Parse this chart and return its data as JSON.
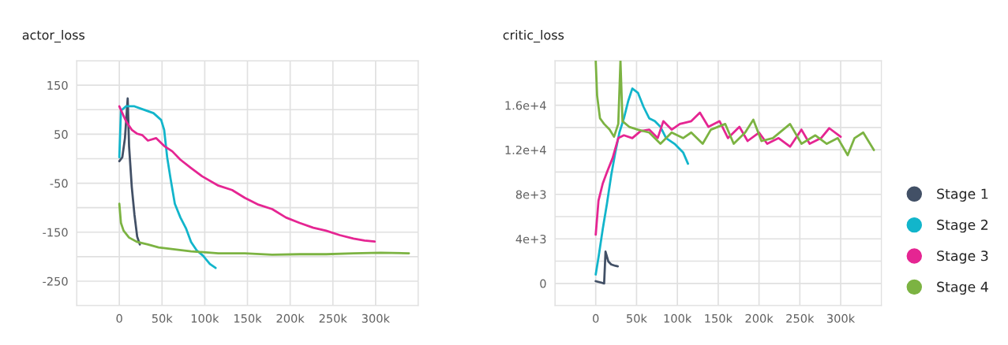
{
  "chart_data": [
    {
      "type": "line",
      "title": "actor_loss",
      "grid": true,
      "legend": "right",
      "xlim": [
        -50000,
        350000
      ],
      "ylim": [
        -300,
        200
      ],
      "xticks": [
        {
          "value": -50000,
          "label": null
        },
        0,
        {
          "value": 50000,
          "label": "50k"
        },
        {
          "value": 100000,
          "label": "100k"
        },
        {
          "value": 150000,
          "label": "150k"
        },
        {
          "value": 200000,
          "label": "200k"
        },
        {
          "value": 250000,
          "label": "250k"
        },
        {
          "value": 300000,
          "label": "300k"
        },
        {
          "value": 350000,
          "label": null
        }
      ],
      "yticks": [
        {
          "value": 200,
          "label": null
        },
        150,
        {
          "value": 100,
          "label": null
        },
        50,
        {
          "value": 0,
          "label": null
        },
        -50,
        {
          "value": -100,
          "label": null
        },
        -150,
        {
          "value": -200,
          "label": null
        },
        -250,
        {
          "value": -300,
          "label": null
        }
      ],
      "series": [
        {
          "name": "Stage 1",
          "color": "#425066",
          "x": [
            0,
            3500,
            6600,
            9800,
            11400,
            14600,
            17700,
            20900,
            24000
          ],
          "values": [
            -5,
            3,
            42,
            123,
            26,
            -58,
            -114,
            -159,
            -175
          ]
        },
        {
          "name": "Stage 2",
          "color": "#12b5cb",
          "x": [
            0,
            1900,
            8000,
            17700,
            27000,
            40000,
            49000,
            52500,
            56000,
            60000,
            65000,
            71500,
            78000,
            84000,
            90500,
            98000,
            106000,
            112700
          ],
          "values": [
            3,
            98,
            107,
            107,
            101,
            93,
            79,
            59,
            3,
            -41,
            -92,
            -120,
            -142,
            -170,
            -187,
            -198,
            -215,
            -223
          ]
        },
        {
          "name": "Stage 3",
          "color": "#e52592",
          "x": [
            0,
            3500,
            8000,
            14600,
            21000,
            27000,
            33500,
            43000,
            52500,
            62000,
            71500,
            84000,
            97000,
            116000,
            132000,
            147000,
            163000,
            179000,
            195000,
            211000,
            227000,
            242000,
            258000,
            274000,
            287000,
            299000
          ],
          "values": [
            107,
            93,
            76,
            59,
            51,
            48,
            37,
            42,
            26,
            15,
            -2,
            -19,
            -36,
            -55,
            -64,
            -80,
            -94,
            -103,
            -120,
            -131,
            -141,
            -147,
            -156,
            -163,
            -167,
            -169
          ]
        },
        {
          "name": "Stage 4",
          "color": "#7cb342",
          "x": [
            0,
            1900,
            5000,
            11400,
            21000,
            33500,
            46000,
            65000,
            84000,
            116000,
            147000,
            179000,
            211000,
            242000,
            274000,
            306000,
            339000
          ],
          "values": [
            -92,
            -131,
            -147,
            -161,
            -170,
            -175,
            -181,
            -185,
            -189,
            -193,
            -193,
            -196,
            -195,
            -195,
            -193,
            -192,
            -193
          ]
        }
      ]
    },
    {
      "type": "line",
      "title": "critic_loss",
      "grid": true,
      "xlim": [
        -50000,
        350000
      ],
      "ylim": [
        -2000,
        20000
      ],
      "xticks": [
        {
          "value": -50000,
          "label": null
        },
        0,
        {
          "value": 50000,
          "label": "50k"
        },
        {
          "value": 100000,
          "label": "100k"
        },
        {
          "value": 150000,
          "label": "150k"
        },
        {
          "value": 200000,
          "label": "200k"
        },
        {
          "value": 250000,
          "label": "250k"
        },
        {
          "value": 300000,
          "label": "300k"
        },
        {
          "value": 350000,
          "label": null
        }
      ],
      "yticks": [
        {
          "value": -2000,
          "label": null
        },
        0,
        {
          "value": 2000,
          "label": null
        },
        {
          "value": 4000,
          "label": "4e+3"
        },
        {
          "value": 6000,
          "label": null
        },
        {
          "value": 8000,
          "label": "8e+3"
        },
        {
          "value": 10000,
          "label": null
        },
        {
          "value": 12000,
          "label": "1.2e+4"
        },
        {
          "value": 14000,
          "label": null
        },
        {
          "value": 16000,
          "label": "1.6e+4"
        },
        {
          "value": 18000,
          "label": null
        },
        {
          "value": 20000,
          "label": null
        }
      ],
      "series": [
        {
          "color": "#425066",
          "x": [
            0,
            10300,
            12000,
            15500,
            19000,
            24000,
            27000
          ],
          "values": [
            200,
            0,
            2850,
            1960,
            1700,
            1580,
            1530
          ]
        },
        {
          "color": "#12b5cb",
          "x": [
            0,
            3400,
            8600,
            13800,
            19000,
            24000,
            29000,
            34500,
            39700,
            44800,
            51700,
            58600,
            65500,
            72400,
            79300,
            86200,
            96500,
            107000,
            113000
          ],
          "values": [
            800,
            2340,
            4890,
            7190,
            9730,
            11770,
            13550,
            14830,
            16360,
            17500,
            17120,
            15850,
            14830,
            14570,
            14060,
            13050,
            12540,
            11770,
            10750
          ]
        },
        {
          "color": "#e52592",
          "x": [
            0,
            3400,
            8600,
            13800,
            20700,
            27600,
            34500,
            44800,
            55000,
            65500,
            75900,
            82800,
            93000,
            103000,
            117000,
            127600,
            138000,
            151700,
            162000,
            176000,
            186000,
            200000,
            210000,
            224000,
            238000,
            252000,
            262000,
            276000,
            286000,
            300000
          ],
          "values": [
            4380,
            7440,
            8970,
            9990,
            11260,
            13050,
            13300,
            13050,
            13680,
            13810,
            13050,
            14570,
            13810,
            14320,
            14570,
            15340,
            14060,
            14570,
            13050,
            14060,
            12790,
            13550,
            12540,
            13050,
            12280,
            13810,
            12540,
            13050,
            13940,
            13170
          ]
        },
        {
          "color": "#7cb342",
          "x": [
            0,
            1700,
            5200,
            10300,
            17000,
            22400,
            27600,
            30300,
            32800,
            41000,
            51700,
            65500,
            79300,
            93000,
            107000,
            117000,
            131000,
            141000,
            158600,
            169000,
            183000,
            193000,
            203000,
            217000,
            238000,
            252000,
            269000,
            283000,
            296500,
            308600,
            317000,
            327600,
            340700
          ],
          "values": [
            20000,
            16870,
            14830,
            14320,
            13810,
            13170,
            14320,
            20000,
            14570,
            14060,
            13810,
            13550,
            12540,
            13550,
            13050,
            13550,
            12540,
            13810,
            14320,
            12540,
            13550,
            14700,
            12790,
            13050,
            14320,
            12540,
            13300,
            12540,
            13050,
            11520,
            13050,
            13550,
            11980
          ]
        }
      ]
    }
  ]
}
